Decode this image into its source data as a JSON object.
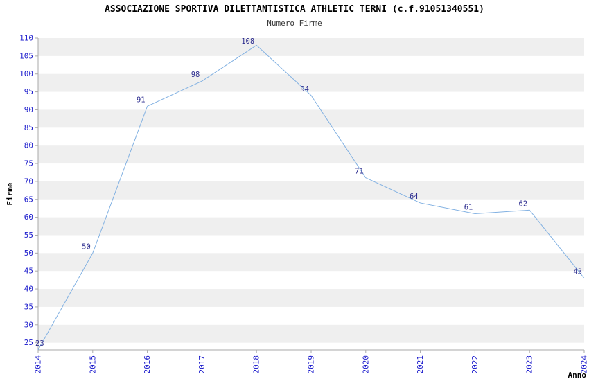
{
  "title": "ASSOCIAZIONE SPORTIVA DILETTANTISTICA ATHLETIC TERNI (c.f.91051340551)",
  "subtitle": "Numero Firme",
  "chart_data": {
    "type": "line",
    "title": "ASSOCIAZIONE SPORTIVA DILETTANTISTICA ATHLETIC TERNI (c.f.91051340551)",
    "subtitle": "Numero Firme",
    "xlabel": "Anno",
    "ylabel": "Firme",
    "categories": [
      "2014",
      "2015",
      "2016",
      "2017",
      "2018",
      "2019",
      "2020",
      "2021",
      "2022",
      "2023",
      "2024"
    ],
    "values": [
      23,
      50,
      91,
      98,
      108,
      94,
      71,
      64,
      61,
      62,
      43
    ],
    "ylim": [
      25,
      110
    ],
    "ytick_step": 5,
    "grid": "horizontal-bands",
    "legend": "none",
    "colors": {
      "line": "#82B1E2",
      "tick_label": "#1B1BCC",
      "data_label": "#2D2D8F",
      "band_gray": "#EFEFEF",
      "band_white": "#FFFFFF",
      "axis": "#AAAAAA",
      "title": "#000000",
      "subtitle": "#3A3A3A",
      "axis_label": "#000000"
    }
  }
}
